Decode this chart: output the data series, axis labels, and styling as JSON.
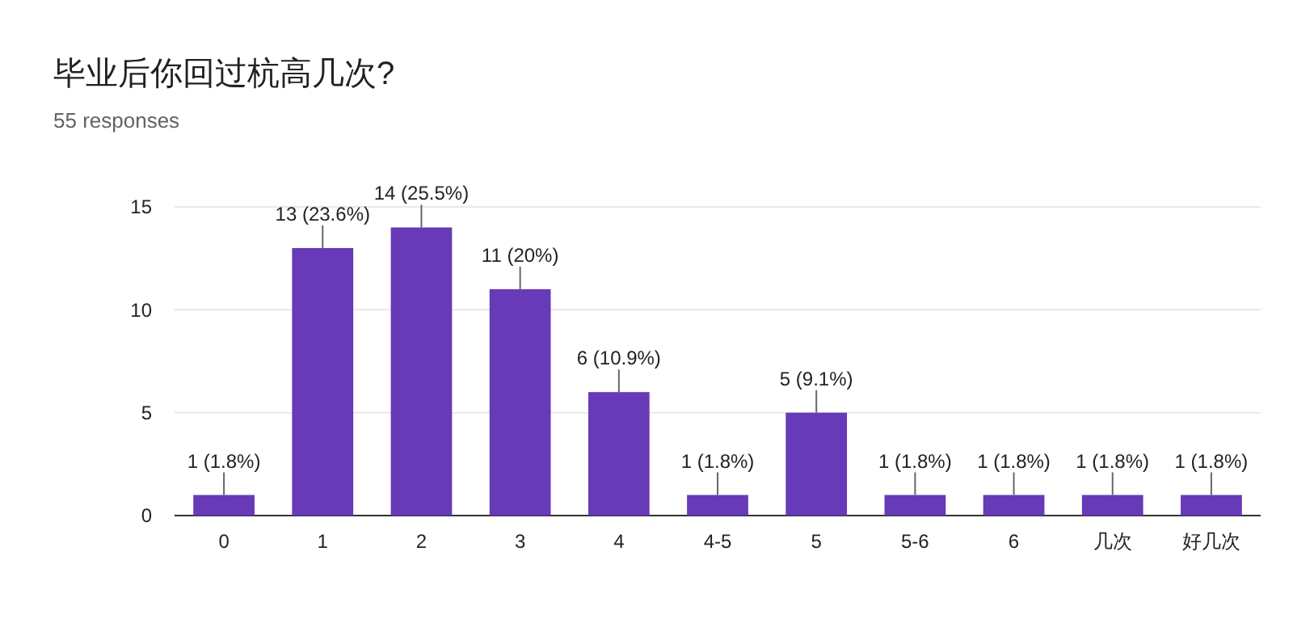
{
  "chart_data": {
    "type": "bar",
    "title": "毕业后你回过杭高几次?",
    "subtitle": "55 responses",
    "categories": [
      "0",
      "1",
      "2",
      "3",
      "4",
      "4-5",
      "5",
      "5-6",
      "6",
      "几次",
      "好几次"
    ],
    "values": [
      1,
      13,
      14,
      11,
      6,
      1,
      5,
      1,
      1,
      1,
      1
    ],
    "value_labels": [
      "1 (1.8%)",
      "13 (23.6%)",
      "14 (25.5%)",
      "11 (20%)",
      "6 (10.9%)",
      "1 (1.8%)",
      "5 (9.1%)",
      "1 (1.8%)",
      "1 (1.8%)",
      "1 (1.8%)",
      "1 (1.8%)"
    ],
    "color": "#673ab7",
    "ylim": [
      0,
      15
    ],
    "yticks": [
      0,
      5,
      10,
      15
    ],
    "grid": "y"
  }
}
